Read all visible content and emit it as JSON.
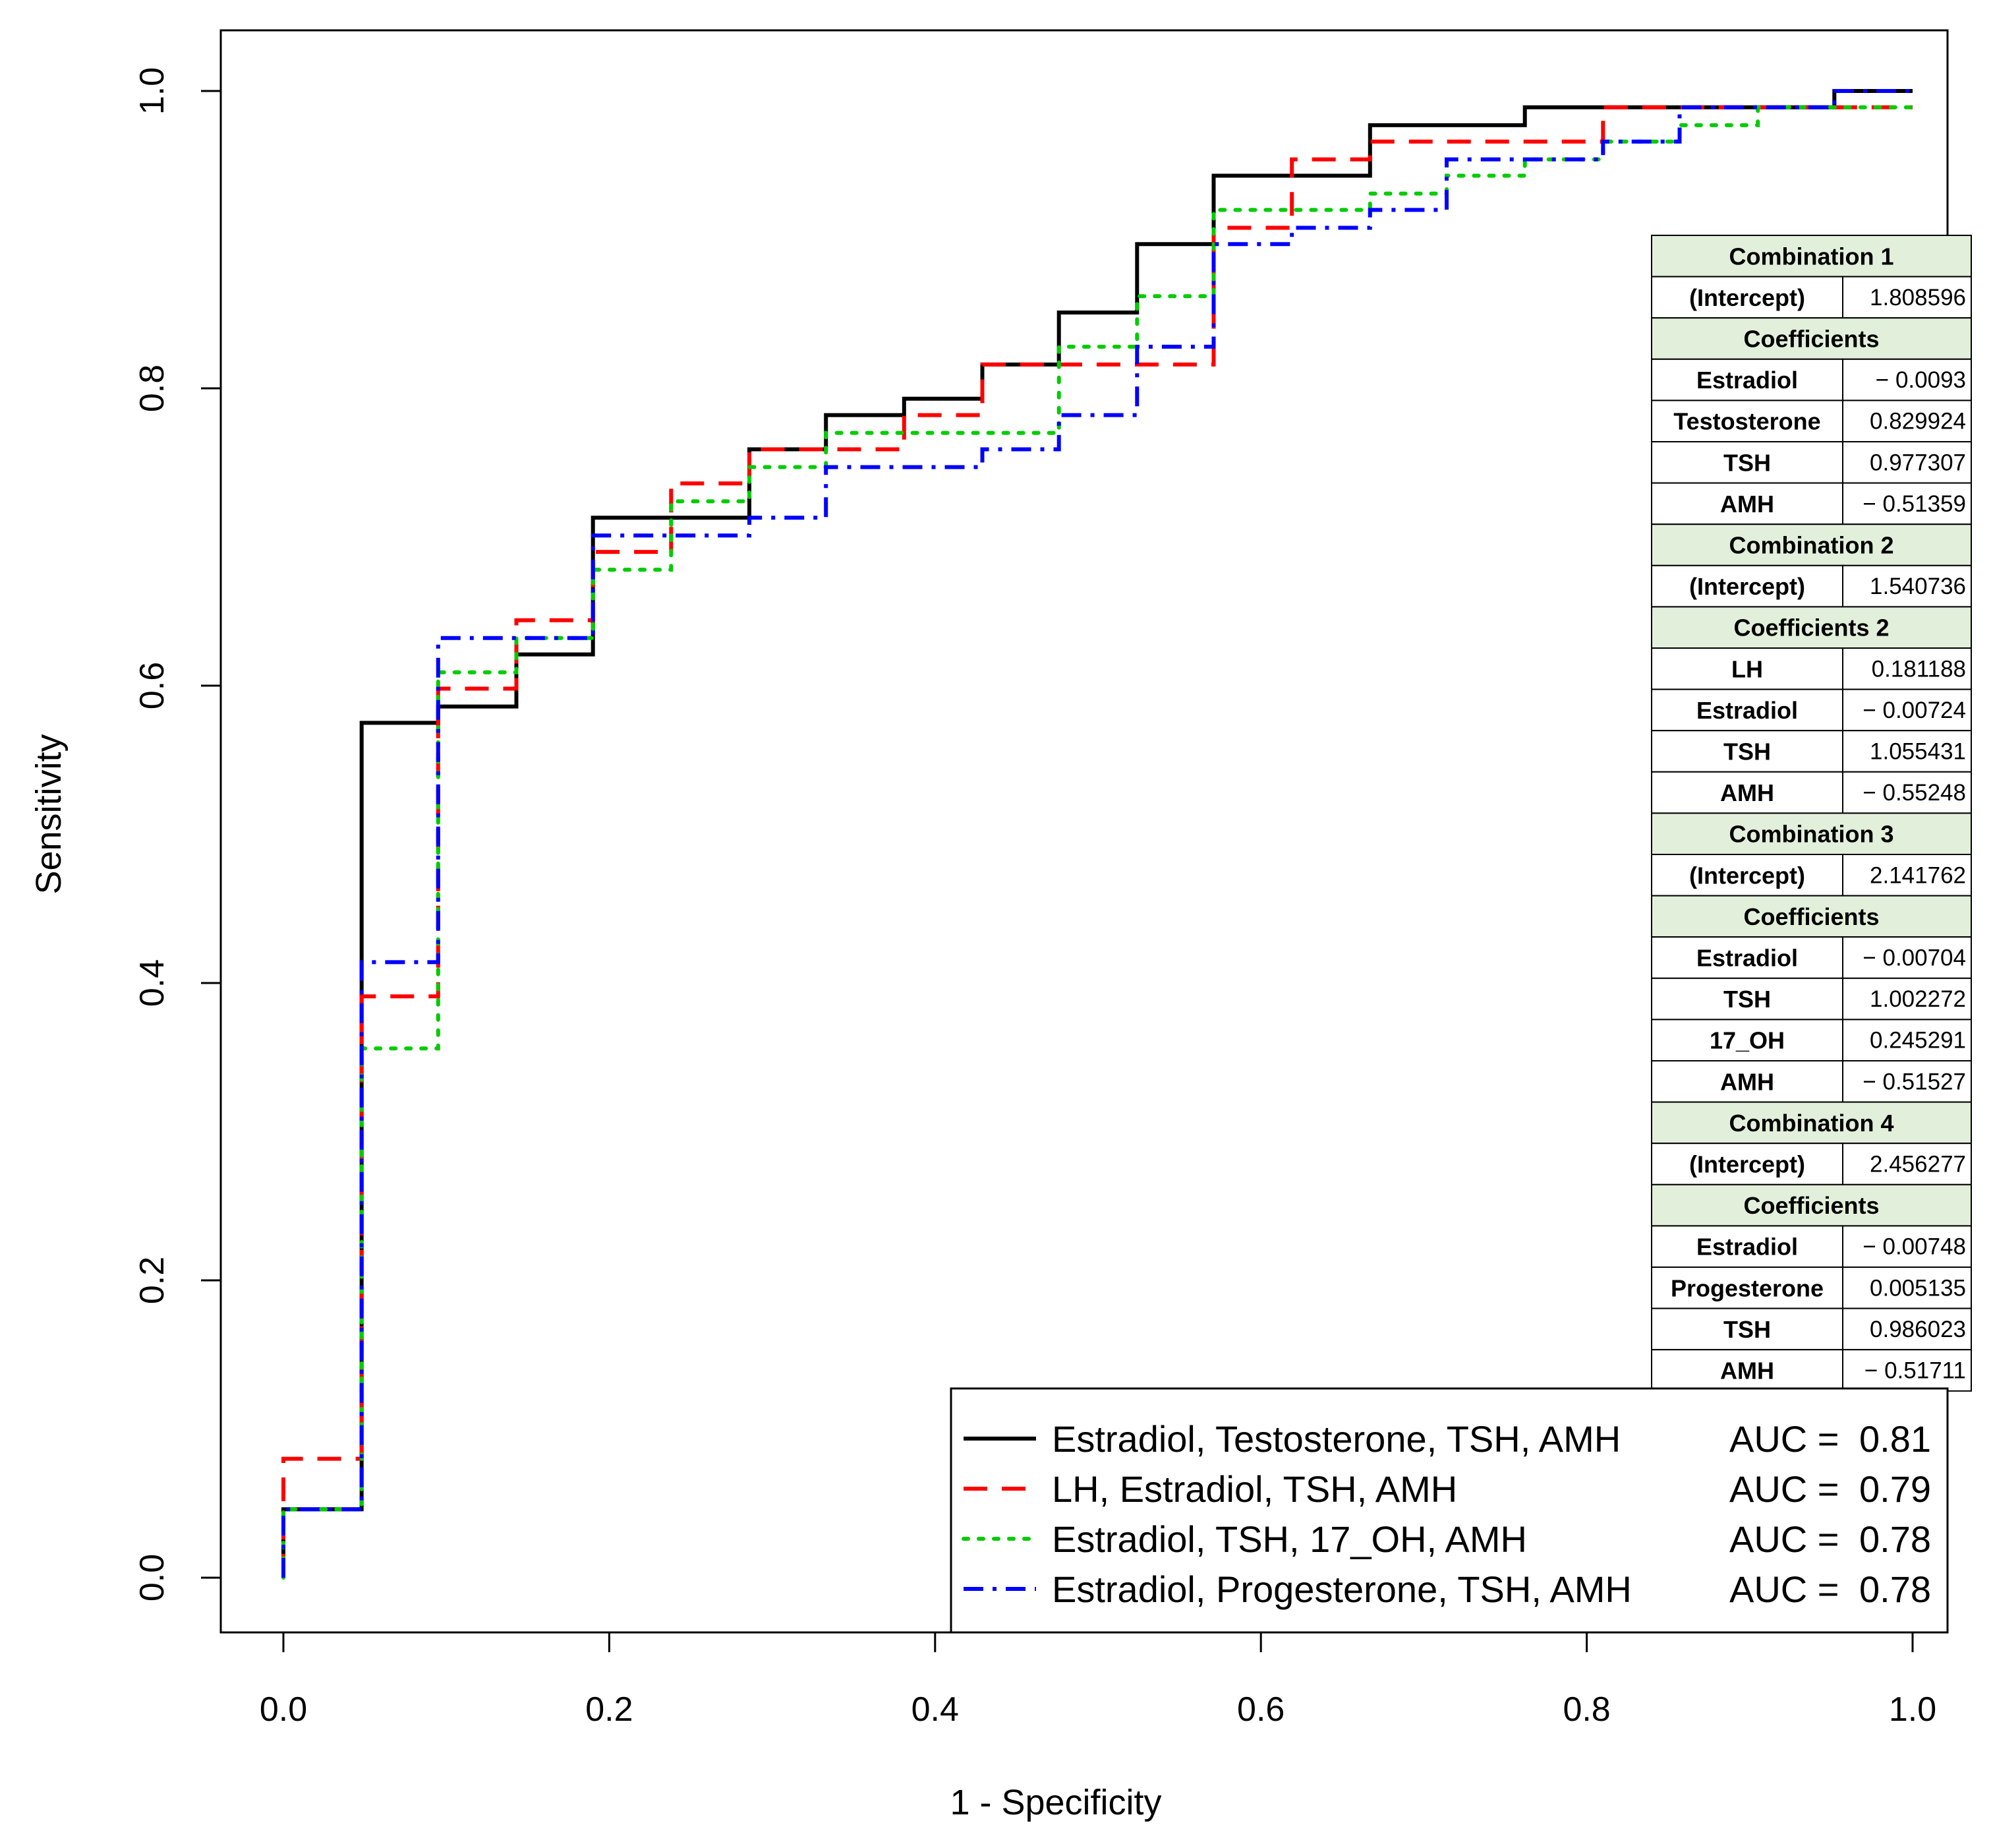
{
  "chart_data": {
    "type": "line",
    "title": "",
    "xlabel": "1 - Specificity",
    "ylabel": "Sensitivity",
    "xlim": [
      0,
      1
    ],
    "ylim": [
      0,
      1
    ],
    "x_ticks": [
      "0.0",
      "0.2",
      "0.4",
      "0.6",
      "0.8",
      "1.0"
    ],
    "y_ticks": [
      "0.0",
      "0.2",
      "0.4",
      "0.6",
      "0.8",
      "1.0"
    ],
    "legend_position": "bottom-right",
    "series": [
      {
        "name": "Estradiol, Testosterone, TSH, AMH",
        "auc_label": "AUC =",
        "auc": "0.81",
        "color": "#000000",
        "style": "solid",
        "x": [
          0,
          0,
          0.048,
          0.048,
          0.095,
          0.095,
          0.143,
          0.143,
          0.19,
          0.19,
          0.286,
          0.286,
          0.333,
          0.333,
          0.381,
          0.381,
          0.429,
          0.429,
          0.476,
          0.476,
          0.524,
          0.524,
          0.571,
          0.571,
          0.667,
          0.667,
          0.762,
          0.762,
          0.952,
          0.952,
          1.0
        ],
        "y": [
          0,
          0.046,
          0.046,
          0.575,
          0.575,
          0.586,
          0.586,
          0.621,
          0.621,
          0.713,
          0.713,
          0.759,
          0.759,
          0.782,
          0.782,
          0.793,
          0.793,
          0.816,
          0.816,
          0.851,
          0.851,
          0.897,
          0.897,
          0.943,
          0.943,
          0.977,
          0.977,
          0.989,
          0.989,
          1.0,
          1.0
        ]
      },
      {
        "name": "LH, Estradiol, TSH, AMH",
        "auc_label": "AUC =",
        "auc": "0.79",
        "color": "#ff0000",
        "style": "dashed",
        "x": [
          0,
          0,
          0.048,
          0.048,
          0.095,
          0.095,
          0.143,
          0.143,
          0.19,
          0.19,
          0.238,
          0.238,
          0.286,
          0.286,
          0.381,
          0.381,
          0.429,
          0.429,
          0.571,
          0.571,
          0.619,
          0.619,
          0.667,
          0.667,
          0.81,
          0.81,
          1.0
        ],
        "y": [
          0,
          0.08,
          0.08,
          0.391,
          0.391,
          0.598,
          0.598,
          0.644,
          0.644,
          0.69,
          0.69,
          0.736,
          0.736,
          0.759,
          0.759,
          0.782,
          0.782,
          0.816,
          0.816,
          0.908,
          0.908,
          0.954,
          0.954,
          0.966,
          0.966,
          0.989,
          0.989
        ]
      },
      {
        "name": "Estradiol, TSH, 17_OH, AMH",
        "auc_label": "AUC =",
        "auc": "0.78",
        "color": "#00cc00",
        "style": "dotted",
        "x": [
          0,
          0,
          0.048,
          0.048,
          0.095,
          0.095,
          0.143,
          0.143,
          0.19,
          0.19,
          0.238,
          0.238,
          0.286,
          0.286,
          0.333,
          0.333,
          0.476,
          0.476,
          0.524,
          0.524,
          0.571,
          0.571,
          0.667,
          0.667,
          0.714,
          0.714,
          0.762,
          0.762,
          0.81,
          0.81,
          0.857,
          0.857,
          0.905,
          0.905,
          1.0
        ],
        "y": [
          0,
          0.046,
          0.046,
          0.356,
          0.356,
          0.609,
          0.609,
          0.632,
          0.632,
          0.678,
          0.678,
          0.724,
          0.724,
          0.747,
          0.747,
          0.77,
          0.77,
          0.828,
          0.828,
          0.862,
          0.862,
          0.92,
          0.92,
          0.931,
          0.931,
          0.943,
          0.943,
          0.954,
          0.954,
          0.966,
          0.966,
          0.977,
          0.977,
          0.989,
          0.989
        ]
      },
      {
        "name": "Estradiol, Progesterone, TSH, AMH",
        "auc_label": "AUC =",
        "auc": "0.78",
        "color": "#0000ff",
        "style": "dotdash",
        "x": [
          0,
          0,
          0.048,
          0.048,
          0.095,
          0.095,
          0.19,
          0.19,
          0.286,
          0.286,
          0.333,
          0.333,
          0.429,
          0.429,
          0.476,
          0.476,
          0.524,
          0.524,
          0.571,
          0.571,
          0.619,
          0.619,
          0.667,
          0.667,
          0.714,
          0.714,
          0.81,
          0.81,
          0.857,
          0.857,
          0.952,
          0.952,
          1.0
        ],
        "y": [
          0,
          0.046,
          0.046,
          0.414,
          0.414,
          0.632,
          0.632,
          0.701,
          0.701,
          0.713,
          0.713,
          0.747,
          0.747,
          0.759,
          0.759,
          0.782,
          0.782,
          0.828,
          0.828,
          0.897,
          0.897,
          0.908,
          0.908,
          0.92,
          0.92,
          0.954,
          0.954,
          0.966,
          0.966,
          0.989,
          0.989,
          1.0,
          1.0
        ]
      }
    ],
    "coefficient_table": [
      {
        "kind": "header",
        "label": "Combination 1"
      },
      {
        "kind": "row",
        "label": "(Intercept)",
        "value": "1.808596"
      },
      {
        "kind": "header",
        "label": "Coefficients"
      },
      {
        "kind": "row",
        "label": "Estradiol",
        "value": "− 0.0093"
      },
      {
        "kind": "row",
        "label": "Testosterone",
        "value": "0.829924"
      },
      {
        "kind": "row",
        "label": "TSH",
        "value": "0.977307"
      },
      {
        "kind": "row",
        "label": "AMH",
        "value": "− 0.51359"
      },
      {
        "kind": "header",
        "label": "Combination 2"
      },
      {
        "kind": "row",
        "label": "(Intercept)",
        "value": "1.540736"
      },
      {
        "kind": "header",
        "label": "Coefficients 2"
      },
      {
        "kind": "row",
        "label": "LH",
        "value": "0.181188"
      },
      {
        "kind": "row",
        "label": "Estradiol",
        "value": "− 0.00724"
      },
      {
        "kind": "row",
        "label": "TSH",
        "value": "1.055431"
      },
      {
        "kind": "row",
        "label": "AMH",
        "value": "− 0.55248"
      },
      {
        "kind": "header",
        "label": "Combination 3"
      },
      {
        "kind": "row",
        "label": "(Intercept)",
        "value": "2.141762"
      },
      {
        "kind": "header",
        "label": "Coefficients"
      },
      {
        "kind": "row",
        "label": "Estradiol",
        "value": "− 0.00704"
      },
      {
        "kind": "row",
        "label": "TSH",
        "value": "1.002272"
      },
      {
        "kind": "row",
        "label": "17_OH",
        "value": "0.245291"
      },
      {
        "kind": "row",
        "label": "AMH",
        "value": "− 0.51527"
      },
      {
        "kind": "header",
        "label": "Combination 4"
      },
      {
        "kind": "row",
        "label": "(Intercept)",
        "value": "2.456277"
      },
      {
        "kind": "header",
        "label": "Coefficients"
      },
      {
        "kind": "row",
        "label": "Estradiol",
        "value": "− 0.00748"
      },
      {
        "kind": "row",
        "label": "Progesterone",
        "value": "0.005135"
      },
      {
        "kind": "row",
        "label": "TSH",
        "value": "0.986023"
      },
      {
        "kind": "row",
        "label": "AMH",
        "value": "− 0.51711"
      }
    ],
    "table_header_color": "#e2efda"
  }
}
